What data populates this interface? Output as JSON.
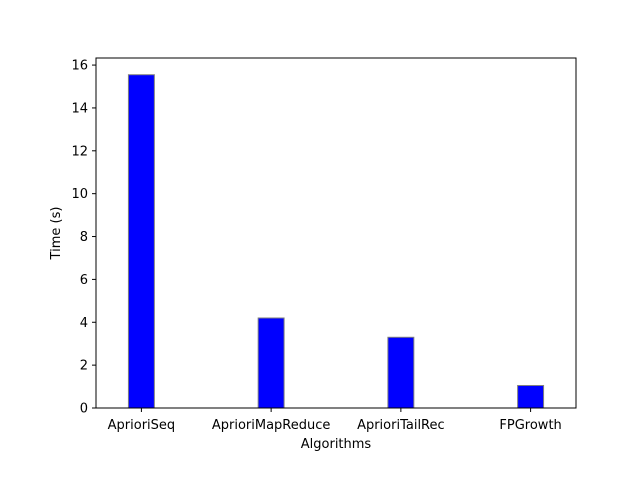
{
  "chart_data": {
    "type": "bar",
    "title": "",
    "xlabel": "Algorithms",
    "ylabel": "Time (s)",
    "categories": [
      "AprioriSeq",
      "AprioriMapReduce",
      "AprioriTailRec",
      "FPGrowth"
    ],
    "values": [
      15.55,
      4.2,
      3.3,
      1.05
    ],
    "ylim": [
      0,
      16.33
    ],
    "yticks": [
      0,
      2,
      4,
      6,
      8,
      10,
      12,
      14,
      16
    ],
    "grid": false,
    "bar_color": "#0000ff",
    "bar_edge_color": "#808080"
  }
}
